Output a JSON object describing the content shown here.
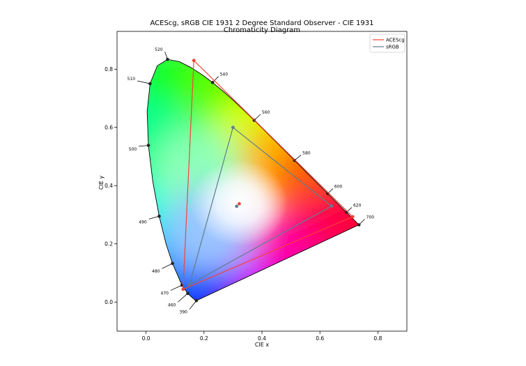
{
  "chart_data": {
    "type": "scatter",
    "title": "ACEScg, sRGB CIE 1931 2 Degree Standard Observer - CIE 1931\nChromaticity Diagram",
    "xlabel": "CIE x",
    "ylabel": "CIE y",
    "xlim": [
      -0.1,
      0.9
    ],
    "ylim": [
      -0.1,
      0.93
    ],
    "xticks": [
      "0.0",
      "0.2",
      "0.4",
      "0.6",
      "0.8"
    ],
    "yticks": [
      "0.0",
      "0.2",
      "0.4",
      "0.6",
      "0.8"
    ],
    "legend_position": "top-right",
    "grid": false,
    "spectral_locus": [
      [
        0.1741,
        0.005
      ],
      [
        0.1738,
        0.0049
      ],
      [
        0.1736,
        0.0049
      ],
      [
        0.173,
        0.0048
      ],
      [
        0.1714,
        0.0051
      ],
      [
        0.1689,
        0.0069
      ],
      [
        0.1644,
        0.0109
      ],
      [
        0.1566,
        0.0177
      ],
      [
        0.144,
        0.0297
      ],
      [
        0.1241,
        0.0578
      ],
      [
        0.0913,
        0.1327
      ],
      [
        0.0687,
        0.2007
      ],
      [
        0.0454,
        0.295
      ],
      [
        0.0235,
        0.4127
      ],
      [
        0.0082,
        0.5384
      ],
      [
        0.0039,
        0.6548
      ],
      [
        0.0139,
        0.7502
      ],
      [
        0.0389,
        0.812
      ],
      [
        0.0743,
        0.8338
      ],
      [
        0.1142,
        0.8262
      ],
      [
        0.1547,
        0.8059
      ],
      [
        0.1929,
        0.7816
      ],
      [
        0.2296,
        0.7543
      ],
      [
        0.2658,
        0.7243
      ],
      [
        0.3016,
        0.6923
      ],
      [
        0.3373,
        0.6589
      ],
      [
        0.3731,
        0.6245
      ],
      [
        0.4087,
        0.5896
      ],
      [
        0.4441,
        0.5547
      ],
      [
        0.4788,
        0.5202
      ],
      [
        0.5125,
        0.4866
      ],
      [
        0.5448,
        0.4544
      ],
      [
        0.5752,
        0.4242
      ],
      [
        0.6029,
        0.3965
      ],
      [
        0.627,
        0.3725
      ],
      [
        0.6482,
        0.3514
      ],
      [
        0.6658,
        0.334
      ],
      [
        0.6801,
        0.3197
      ],
      [
        0.6915,
        0.3083
      ],
      [
        0.7006,
        0.2993
      ],
      [
        0.7079,
        0.292
      ],
      [
        0.714,
        0.2859
      ],
      [
        0.719,
        0.2809
      ],
      [
        0.723,
        0.277
      ],
      [
        0.726,
        0.274
      ],
      [
        0.7283,
        0.2717
      ],
      [
        0.73,
        0.27
      ],
      [
        0.7311,
        0.2689
      ],
      [
        0.732,
        0.268
      ],
      [
        0.7327,
        0.2673
      ],
      [
        0.7334,
        0.2666
      ],
      [
        0.734,
        0.266
      ],
      [
        0.7344,
        0.2656
      ],
      [
        0.7346,
        0.2654
      ],
      [
        0.7347,
        0.2653
      ]
    ],
    "wavelength_labels": [
      {
        "label": "390",
        "x": 0.1738,
        "y": 0.0049,
        "tip": [
          0.15,
          -0.025
        ]
      },
      {
        "label": "460",
        "x": 0.144,
        "y": 0.0297,
        "tip": [
          0.11,
          0.0
        ]
      },
      {
        "label": "470",
        "x": 0.1241,
        "y": 0.0578,
        "tip": [
          0.085,
          0.04
        ]
      },
      {
        "label": "480",
        "x": 0.0913,
        "y": 0.1327,
        "tip": [
          0.055,
          0.115
        ]
      },
      {
        "label": "490",
        "x": 0.0454,
        "y": 0.295,
        "tip": [
          0.01,
          0.285
        ]
      },
      {
        "label": "500",
        "x": 0.0082,
        "y": 0.5384,
        "tip": [
          -0.025,
          0.535
        ]
      },
      {
        "label": "510",
        "x": 0.0139,
        "y": 0.7502,
        "tip": [
          -0.03,
          0.76
        ]
      },
      {
        "label": "520",
        "x": 0.0743,
        "y": 0.8338,
        "tip": [
          0.065,
          0.86
        ]
      },
      {
        "label": "540",
        "x": 0.2296,
        "y": 0.7543,
        "tip": [
          0.25,
          0.775
        ]
      },
      {
        "label": "560",
        "x": 0.3731,
        "y": 0.6245,
        "tip": [
          0.395,
          0.645
        ]
      },
      {
        "label": "580",
        "x": 0.5125,
        "y": 0.4866,
        "tip": [
          0.535,
          0.505
        ]
      },
      {
        "label": "600",
        "x": 0.627,
        "y": 0.3725,
        "tip": [
          0.645,
          0.39
        ]
      },
      {
        "label": "620",
        "x": 0.6915,
        "y": 0.3083,
        "tip": [
          0.71,
          0.325
        ]
      },
      {
        "label": "700",
        "x": 0.7347,
        "y": 0.2653,
        "tip": [
          0.755,
          0.285
        ]
      }
    ],
    "series": [
      {
        "name": "ACEScg",
        "color": "#f44336",
        "primaries": [
          [
            0.713,
            0.293
          ],
          [
            0.165,
            0.83
          ],
          [
            0.128,
            0.044
          ]
        ],
        "whitepoint": [
          0.32168,
          0.33767
        ]
      },
      {
        "name": "sRGB",
        "color": "#607d8b",
        "primaries": [
          [
            0.64,
            0.33
          ],
          [
            0.3,
            0.6
          ],
          [
            0.15,
            0.06
          ]
        ],
        "whitepoint": [
          0.3127,
          0.329
        ]
      }
    ]
  }
}
